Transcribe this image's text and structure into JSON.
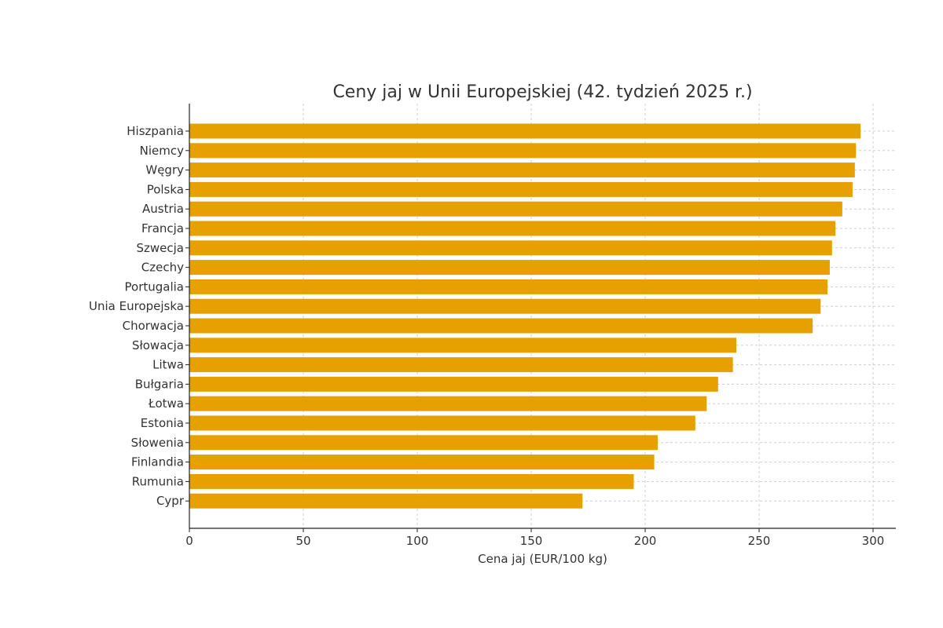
{
  "chart_data": {
    "type": "bar",
    "orientation": "horizontal",
    "title": "Ceny jaj w Unii Europejskiej (42. tydzień 2025 r.)",
    "xlabel": "Cena jaj (EUR/100 kg)",
    "ylabel": "",
    "xlim": [
      0,
      310
    ],
    "xticks": [
      0,
      50,
      100,
      150,
      200,
      250,
      300
    ],
    "grid": true,
    "bar_color": "#E6A000",
    "categories": [
      "Hiszpania",
      "Niemcy",
      "Węgry",
      "Polska",
      "Austria",
      "Francja",
      "Szwecja",
      "Czechy",
      "Portugalia",
      "Unia Europejska",
      "Chorwacja",
      "Słowacja",
      "Litwa",
      "Bułgaria",
      "Łotwa",
      "Estonia",
      "Słowenia",
      "Finlandia",
      "Rumunia",
      "Cypr"
    ],
    "values": [
      294.5,
      292.5,
      292,
      291,
      286.5,
      283.5,
      282,
      281,
      280,
      277,
      273.5,
      240,
      238.5,
      232,
      227,
      222,
      205.5,
      204,
      195,
      172.5
    ]
  }
}
